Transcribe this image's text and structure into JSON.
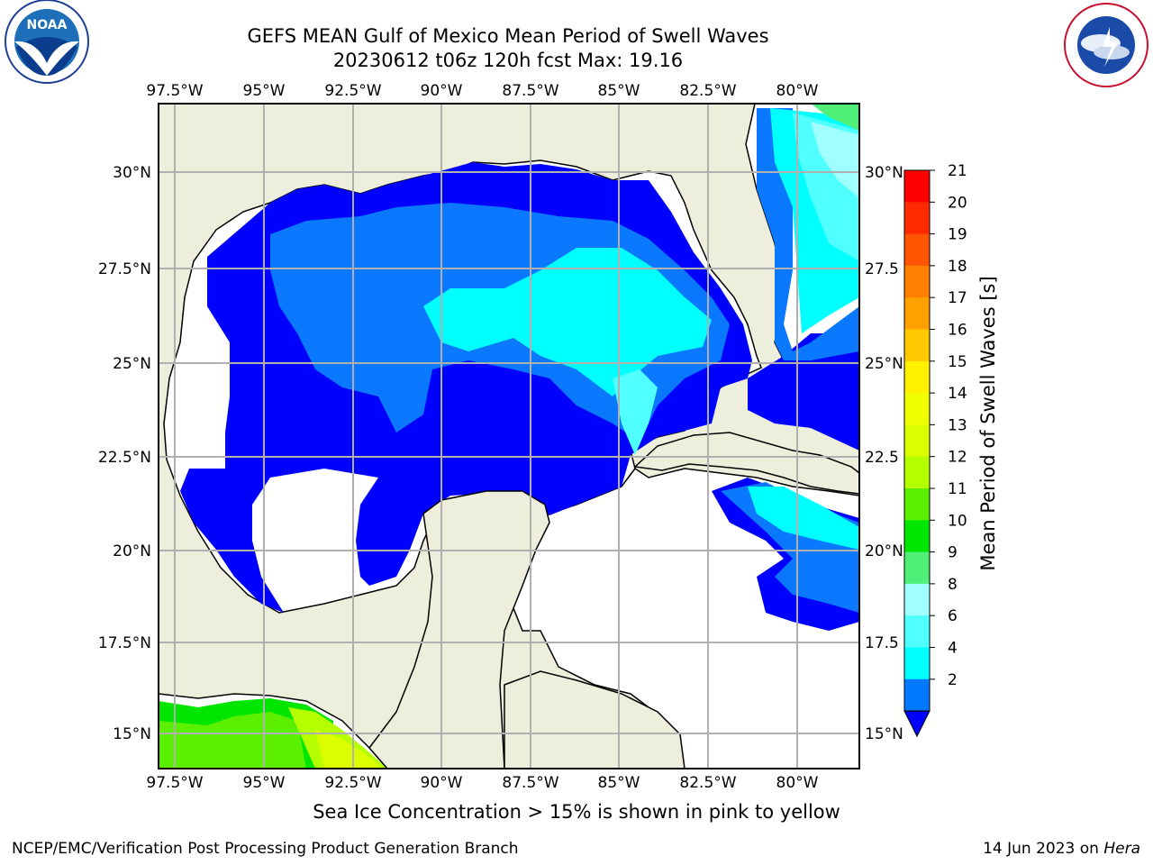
{
  "title_line1": "GEFS MEAN Gulf of Mexico Mean Period of Swell Waves",
  "title_line2": "20230612 t06z 120h fcst   Max: 19.16",
  "lon_ticks": [
    "97.5°W",
    "95°W",
    "92.5°W",
    "90°W",
    "87.5°W",
    "85°W",
    "82.5°W",
    "80°W"
  ],
  "lat_ticks_left": [
    "30°N",
    "27.5°N",
    "25°N",
    "22.5°N",
    "20°N",
    "17.5°N",
    "15°N"
  ],
  "lat_ticks_right": [
    "30°N",
    "27.5",
    "25°N",
    "22.5",
    "20°N",
    "17.5",
    "15°N"
  ],
  "colorbar": {
    "label": "Mean Period of Swell Waves [s]",
    "ticks": [
      "21",
      "20",
      "19",
      "18",
      "17",
      "16",
      "15",
      "14",
      "13",
      "12",
      "11",
      "10",
      "9",
      "8",
      "6",
      "4",
      "2"
    ],
    "colors": [
      "#ff0000",
      "#ff2a00",
      "#ff5500",
      "#ff8000",
      "#ffa000",
      "#ffc800",
      "#fff000",
      "#f0ff00",
      "#dcff00",
      "#b4ff00",
      "#5af000",
      "#00e600",
      "#50f078",
      "#a0ffff",
      "#50ffff",
      "#00ffff",
      "#0078ff"
    ],
    "under_color": "#0000ff"
  },
  "map_colors": {
    "land": "#eeeedc",
    "ocean_nodata": "#ffffff",
    "grid": "#b0b0b0",
    "p2": "#0000ff",
    "p4": "#0a78ff",
    "p6": "#00ffff",
    "p8": "#50ffff",
    "p9": "#a0ffff",
    "p10": "#50f078",
    "p11": "#00e600",
    "p12": "#5af000",
    "p13": "#b4ff00",
    "p14": "#dcff00"
  },
  "footer_note": "Sea Ice Concentration > 15% is shown in pink to yellow",
  "credit_left": "NCEP/EMC/Verification Post Processing Product Generation Branch",
  "credit_right_date": "14 Jun 2023 on",
  "credit_right_host": "Hera",
  "logos": {
    "left": "noaa-logo",
    "right": "nws-logo"
  }
}
